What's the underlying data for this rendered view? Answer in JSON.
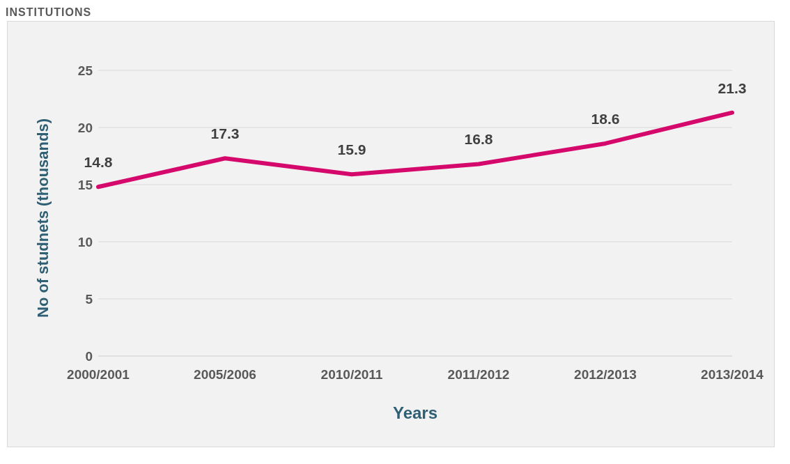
{
  "chart_data": {
    "type": "line",
    "title": "INSTITUTIONS",
    "xlabel": "Years",
    "ylabel": "No of studnets (thousands)",
    "categories": [
      "2000/2001",
      "2005/2006",
      "2010/2011",
      "2011/2012",
      "2012/2013",
      "2013/2014"
    ],
    "series": [
      {
        "color": "#d5096b",
        "values": [
          14.8,
          17.3,
          15.9,
          16.8,
          18.6,
          21.3
        ]
      }
    ],
    "ylim": [
      0,
      25
    ],
    "yticks": [
      0,
      5,
      10,
      15,
      20,
      25
    ],
    "grid": "y",
    "data_labels": true,
    "marker": "none",
    "line_style": "solid",
    "legend": false
  }
}
